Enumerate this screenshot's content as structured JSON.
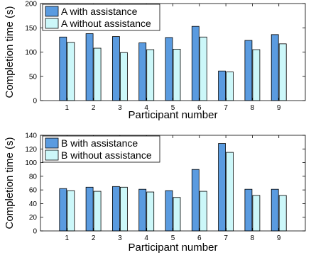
{
  "colors": {
    "with_assistance": "#5a9be0",
    "without_assistance": "#ccf7f9",
    "bar_edge": "#000000",
    "axis": "#000000"
  },
  "chart_data": [
    {
      "type": "bar",
      "xlabel": "Participant number",
      "ylabel": "Completion time (s)",
      "categories": [
        "1",
        "2",
        "3",
        "4",
        "5",
        "6",
        "7",
        "8",
        "9"
      ],
      "ylim": [
        0,
        200
      ],
      "yticks": [
        0,
        50,
        100,
        150,
        200
      ],
      "grid": false,
      "legend_position": "top-left",
      "series": [
        {
          "name": "A with assistance",
          "values": [
            131,
            138,
            132,
            119,
            130,
            153,
            61,
            124,
            136
          ]
        },
        {
          "name": "A without assistance",
          "values": [
            120,
            108,
            99,
            105,
            106,
            131,
            59,
            105,
            117
          ]
        }
      ]
    },
    {
      "type": "bar",
      "xlabel": "Participant number",
      "ylabel": "Completion time (s)",
      "categories": [
        "1",
        "2",
        "3",
        "4",
        "5",
        "6",
        "7",
        "8",
        "9"
      ],
      "ylim": [
        0,
        140
      ],
      "yticks": [
        0,
        20,
        40,
        60,
        80,
        100,
        120,
        140
      ],
      "grid": false,
      "legend_position": "top-left",
      "series": [
        {
          "name": "B with assistance",
          "values": [
            62,
            64,
            65,
            61,
            59,
            90,
            128,
            61,
            61
          ]
        },
        {
          "name": "B without assistance",
          "values": [
            59,
            58,
            64,
            57,
            49,
            58,
            115,
            52,
            52
          ]
        }
      ]
    }
  ]
}
